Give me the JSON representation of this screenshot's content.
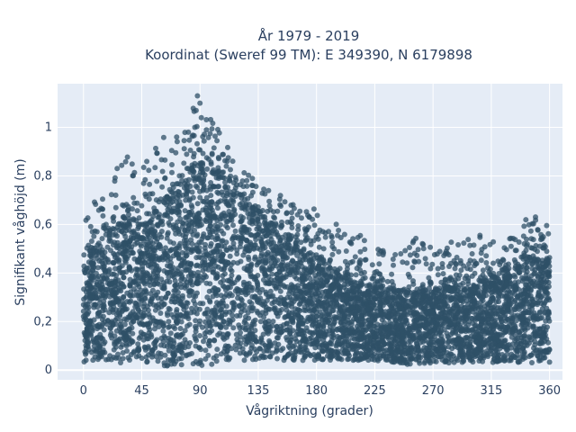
{
  "chart_data": {
    "type": "scatter",
    "title_line1": "År 1979 - 2019",
    "title_line2": "Koordinat (Sweref 99 TM): E 349390, N 6179898",
    "xlabel": "Vågriktning (grader)",
    "ylabel": "Signifikant våghöjd (m)",
    "xlim": [
      -20,
      370
    ],
    "ylim": [
      -0.04,
      1.18
    ],
    "xticks": [
      0,
      45,
      90,
      135,
      180,
      225,
      270,
      315,
      360
    ],
    "xtick_labels": [
      "0",
      "45",
      "90",
      "135",
      "180",
      "225",
      "270",
      "315",
      "360"
    ],
    "yticks": [
      0,
      0.2,
      0.4,
      0.6,
      0.8,
      1
    ],
    "ytick_labels": [
      "0",
      "0,2",
      "0,4",
      "0,6",
      "0,8",
      "1"
    ],
    "grid": true,
    "marker_color": "#2f5067",
    "background": "#e5ecf6",
    "density_profile": [
      {
        "direction": 0,
        "low": 0.03,
        "upper_dense": 0.42,
        "max": 0.65
      },
      {
        "direction": 15,
        "low": 0.03,
        "upper_dense": 0.55,
        "max": 0.75
      },
      {
        "direction": 30,
        "low": 0.03,
        "upper_dense": 0.6,
        "max": 0.9
      },
      {
        "direction": 45,
        "low": 0.02,
        "upper_dense": 0.58,
        "max": 0.85
      },
      {
        "direction": 60,
        "low": 0.01,
        "upper_dense": 0.68,
        "max": 0.96
      },
      {
        "direction": 75,
        "low": 0.01,
        "upper_dense": 0.78,
        "max": 1.0
      },
      {
        "direction": 90,
        "low": 0.01,
        "upper_dense": 0.85,
        "max": 1.13
      },
      {
        "direction": 105,
        "low": 0.03,
        "upper_dense": 0.8,
        "max": 0.98
      },
      {
        "direction": 120,
        "low": 0.04,
        "upper_dense": 0.72,
        "max": 0.84
      },
      {
        "direction": 135,
        "low": 0.04,
        "upper_dense": 0.65,
        "max": 0.8
      },
      {
        "direction": 150,
        "low": 0.04,
        "upper_dense": 0.58,
        "max": 0.76
      },
      {
        "direction": 165,
        "low": 0.04,
        "upper_dense": 0.52,
        "max": 0.68
      },
      {
        "direction": 180,
        "low": 0.04,
        "upper_dense": 0.46,
        "max": 0.68
      },
      {
        "direction": 195,
        "low": 0.04,
        "upper_dense": 0.4,
        "max": 0.62
      },
      {
        "direction": 210,
        "low": 0.04,
        "upper_dense": 0.36,
        "max": 0.58
      },
      {
        "direction": 225,
        "low": 0.04,
        "upper_dense": 0.34,
        "max": 0.5
      },
      {
        "direction": 240,
        "low": 0.03,
        "upper_dense": 0.33,
        "max": 0.5
      },
      {
        "direction": 255,
        "low": 0.02,
        "upper_dense": 0.32,
        "max": 0.55
      },
      {
        "direction": 270,
        "low": 0.03,
        "upper_dense": 0.33,
        "max": 0.54
      },
      {
        "direction": 285,
        "low": 0.03,
        "upper_dense": 0.35,
        "max": 0.55
      },
      {
        "direction": 300,
        "low": 0.03,
        "upper_dense": 0.36,
        "max": 0.56
      },
      {
        "direction": 315,
        "low": 0.03,
        "upper_dense": 0.38,
        "max": 0.55
      },
      {
        "direction": 330,
        "low": 0.03,
        "upper_dense": 0.42,
        "max": 0.56
      },
      {
        "direction": 345,
        "low": 0.03,
        "upper_dense": 0.45,
        "max": 0.65
      },
      {
        "direction": 360,
        "low": 0.03,
        "upper_dense": 0.44,
        "max": 0.63
      }
    ]
  }
}
